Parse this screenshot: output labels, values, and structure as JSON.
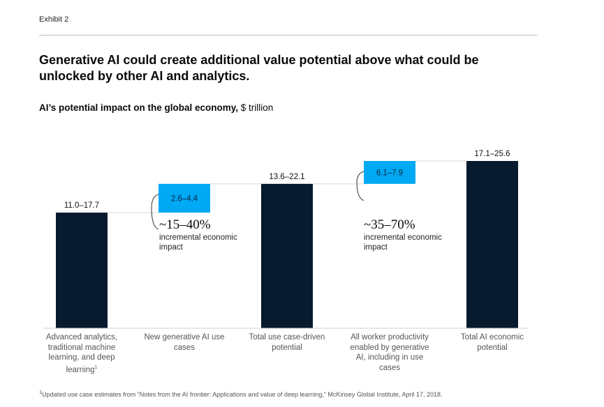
{
  "exhibit": "Exhibit 2",
  "title": "Generative AI could create additional value potential above what could be unlocked by other AI and analytics.",
  "subtitle_bold": "AI’s potential impact on the global economy,",
  "subtitle_unit": " $ trillion",
  "colors": {
    "total": "#071a2e",
    "increment": "#00a9f4",
    "connector": "#d9d9d9",
    "axis": "#cfcfcf"
  },
  "chart_data": {
    "type": "waterfall",
    "ylabel": "$ trillion",
    "ylim": [
      0,
      25.6
    ],
    "categories": [
      "Advanced analytics, traditional machine learning, and deep learning",
      "New generative AI use cases",
      "Total use case-driven potential",
      "All worker productivity enabled by generative AI, including in use cases",
      "Total AI economic potential"
    ],
    "bars": [
      {
        "label": "11.0–17.7",
        "kind": "total",
        "base": 0,
        "top": 17.7
      },
      {
        "label": "2.6–4.4",
        "kind": "increment",
        "base": 17.7,
        "top": 22.1
      },
      {
        "label": "13.6–22.1",
        "kind": "total",
        "base": 0,
        "top": 22.1
      },
      {
        "label": "6.1–7.9",
        "kind": "increment",
        "base": 22.1,
        "top": 25.6
      },
      {
        "label": "17.1–25.6",
        "kind": "total",
        "base": 0,
        "top": 25.6
      }
    ],
    "annotations": [
      {
        "after_bar": 1,
        "value": "~15–40%",
        "text": "incremental economic impact"
      },
      {
        "after_bar": 3,
        "value": "~35–70%",
        "text": "incremental economic impact"
      }
    ]
  },
  "cat_labels": {
    "c0": "Advanced analytics, traditional machine learning, and deep learning",
    "c0_sup": "1",
    "c1": "New generative AI use cases",
    "c2": "Total use case-driven potential",
    "c3": "All worker productivity enabled by generative AI, including in use cases",
    "c4": "Total AI economic potential"
  },
  "notes": {
    "n1_pct": "~15–40%",
    "n1_desc": "incremental economic impact",
    "n2_pct": "~35–70%",
    "n2_desc": "incremental economic impact"
  },
  "footnote_sup": "1",
  "footnote": "Updated use case estimates from “Notes from the AI frontier: Applications and value of deep learning,” McKinsey Global Institute, April 17, 2018."
}
